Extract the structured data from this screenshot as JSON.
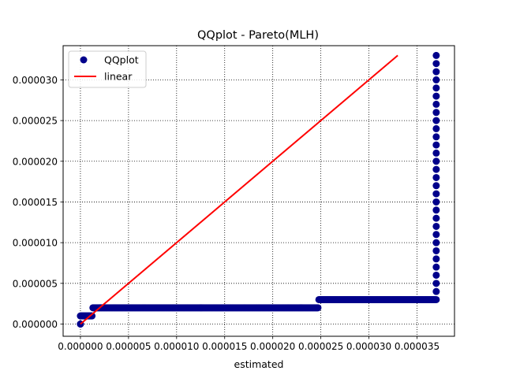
{
  "chart_data": {
    "type": "scatter",
    "title": "QQplot - Pareto(MLH)",
    "xlabel": "estimated",
    "ylabel": "",
    "xlim": [
      -1.8e-06,
      3.89e-05
    ],
    "ylim": [
      -1.5e-06,
      3.42e-05
    ],
    "xticks": [
      0,
      5e-06,
      1e-05,
      1.5e-05,
      2e-05,
      2.5e-05,
      3e-05,
      3.5e-05
    ],
    "xtick_labels": [
      "0.000000",
      "0.000005",
      "0.000010",
      "0.000015",
      "0.000020",
      "0.000025",
      "0.000030",
      "0.000035"
    ],
    "yticks": [
      0,
      5e-06,
      1e-05,
      1.5e-05,
      2e-05,
      2.5e-05,
      3e-05
    ],
    "ytick_labels": [
      "0.000000",
      "0.000005",
      "0.000010",
      "0.000015",
      "0.000020",
      "0.000025",
      "0.000030"
    ],
    "grid": true,
    "grid_style": "dotted",
    "legend_position": "upper-left",
    "series": [
      {
        "name": "QQplot",
        "kind": "markers",
        "color": "#00008b",
        "segments": [
          {
            "x_from": 0.0,
            "x_to": 0.0,
            "y": 0.0
          },
          {
            "x_from": 0.0,
            "x_to": 1.2e-06,
            "y": 1e-06
          },
          {
            "x_from": 1.3e-06,
            "x_to": 2.47e-05,
            "y": 2e-06
          },
          {
            "x_from": 2.48e-05,
            "x_to": 3.69e-05,
            "y": 3e-06
          },
          {
            "x": 3.7e-05,
            "y_from": 3e-06,
            "y_to": 3.3e-05
          }
        ]
      },
      {
        "name": "linear",
        "kind": "line",
        "color": "#ff0000",
        "x": [
          0,
          3.3e-05
        ],
        "y": [
          0,
          3.3e-05
        ]
      }
    ]
  }
}
